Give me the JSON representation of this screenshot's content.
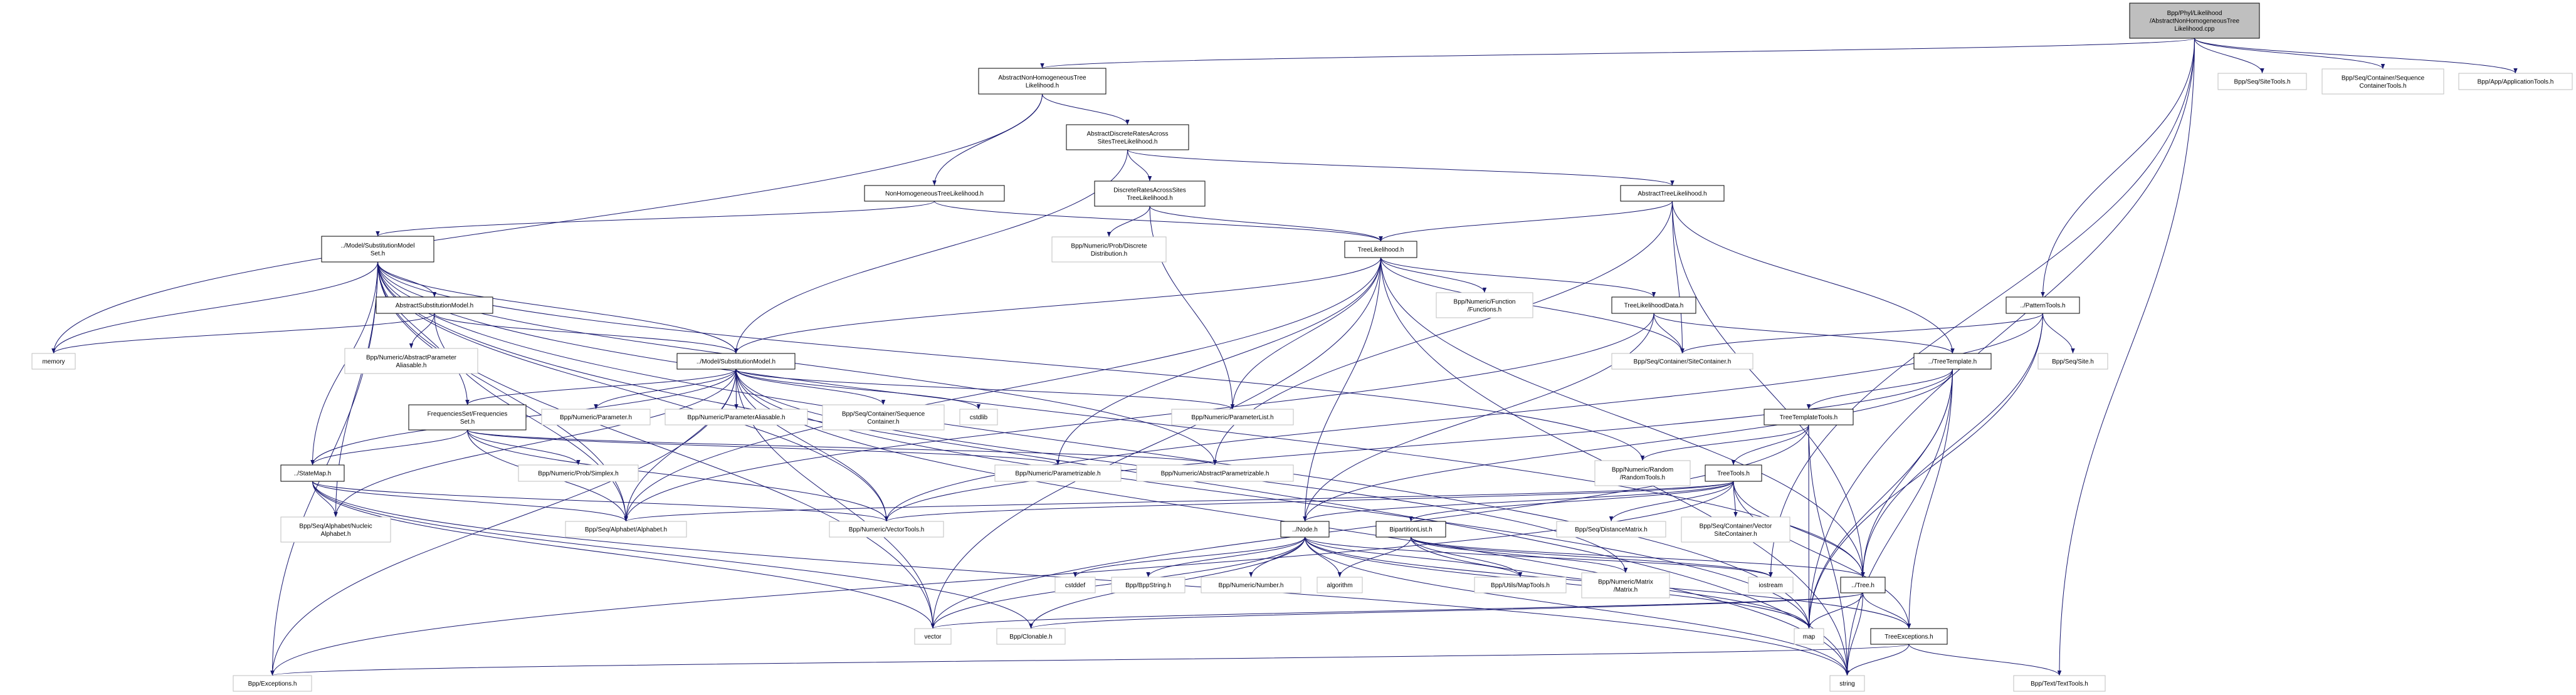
{
  "nodes": {
    "root": [
      "Bpp/Phyl/Likelihood",
      "/AbstractNonHomogeneousTree",
      "Likelihood.cpp"
    ],
    "anhtl": [
      "AbstractNonHomogeneousTree",
      "Likelihood.h"
    ],
    "sitetools": [
      "Bpp/Seq/SiteTools.h"
    ],
    "seqconttools": [
      "Bpp/Seq/Container/Sequence",
      "ContainerTools.h"
    ],
    "apptools": [
      "Bpp/App/ApplicationTools.h"
    ],
    "adras": [
      "AbstractDiscreteRatesAcross",
      "SitesTreeLikelihood.h"
    ],
    "nonhomtl": [
      "NonHomogeneousTreeLikelihood.h"
    ],
    "drastl": [
      "DiscreteRatesAcrossSites",
      "TreeLikelihood.h"
    ],
    "atl": [
      "AbstractTreeLikelihood.h"
    ],
    "discdist": [
      "Bpp/Numeric/Prob/Discrete",
      "Distribution.h"
    ],
    "treelik": [
      "TreeLikelihood.h"
    ],
    "functions": [
      "Bpp/Numeric/Function",
      "/Functions.h"
    ],
    "tldata": [
      "TreeLikelihoodData.h"
    ],
    "patterntools": [
      "../PatternTools.h"
    ],
    "smset": [
      "../Model/SubstitutionModel",
      "Set.h"
    ],
    "abssm": [
      "AbstractSubstitutionModel.h"
    ],
    "memory": [
      "memory"
    ],
    "absparalias": [
      "Bpp/Numeric/AbstractParameter",
      "Aliasable.h"
    ],
    "sm": [
      "../Model/SubstitutionModel.h"
    ],
    "freqset": [
      "FrequenciesSet/Frequencies",
      "Set.h"
    ],
    "parameter": [
      "Bpp/Numeric/Parameter.h"
    ],
    "paralias": [
      "Bpp/Numeric/ParameterAliasable.h"
    ],
    "seqcont": [
      "Bpp/Seq/Container/Sequence",
      "Container.h"
    ],
    "cstdlib": [
      "cstdlib"
    ],
    "paramlist": [
      "Bpp/Numeric/ParameterList.h"
    ],
    "sitecont": [
      "Bpp/Seq/Container/SiteContainer.h"
    ],
    "treetemplate": [
      "../TreeTemplate.h"
    ],
    "site": [
      "Bpp/Seq/Site.h"
    ],
    "ttt": [
      "TreeTemplateTools.h"
    ],
    "statemap": [
      "../StateMap.h"
    ],
    "simplex": [
      "Bpp/Numeric/Prob/Simplex.h"
    ],
    "parametrizable": [
      "Bpp/Numeric/Parametrizable.h"
    ],
    "absparametrizable": [
      "Bpp/Numeric/AbstractParametrizable.h"
    ],
    "randomtools": [
      "Bpp/Numeric/Random",
      "/RandomTools.h"
    ],
    "treetools": [
      "TreeTools.h"
    ],
    "nucalpha": [
      "Bpp/Seq/Alphabet/Nucleic",
      "Alphabet.h"
    ],
    "alphabet": [
      "Bpp/Seq/Alphabet/Alphabet.h"
    ],
    "vectortools": [
      "Bpp/Numeric/VectorTools.h"
    ],
    "node": [
      "../Node.h"
    ],
    "bipartition": [
      "BipartitionList.h"
    ],
    "distmatrix": [
      "Bpp/Seq/DistanceMatrix.h"
    ],
    "vecsitecont": [
      "Bpp/Seq/Container/Vector",
      "SiteContainer.h"
    ],
    "cstddef": [
      "cstddef"
    ],
    "bppstring": [
      "Bpp/BppString.h"
    ],
    "number": [
      "Bpp/Numeric/Number.h"
    ],
    "algorithm": [
      "algorithm"
    ],
    "maptools": [
      "Bpp/Utils/MapTools.h"
    ],
    "matrix": [
      "Bpp/Numeric/Matrix",
      "/Matrix.h"
    ],
    "iostream": [
      "iostream"
    ],
    "tree": [
      "../Tree.h"
    ],
    "vector": [
      "vector"
    ],
    "clonable": [
      "Bpp/Clonable.h"
    ],
    "map": [
      "map"
    ],
    "treeexc": [
      "TreeExceptions.h"
    ],
    "exceptions": [
      "Bpp/Exceptions.h"
    ],
    "string": [
      "string"
    ],
    "texttools": [
      "Bpp/Text/TextTools.h"
    ]
  },
  "edges": [
    [
      "root",
      "anhtl"
    ],
    [
      "root",
      "patterntools"
    ],
    [
      "root",
      "sitetools"
    ],
    [
      "root",
      "seqconttools"
    ],
    [
      "root",
      "apptools"
    ],
    [
      "root",
      "texttools"
    ],
    [
      "root",
      "map"
    ],
    [
      "root",
      "iostream"
    ],
    [
      "anhtl",
      "memory"
    ],
    [
      "anhtl",
      "nonhomtl"
    ],
    [
      "anhtl",
      "adras"
    ],
    [
      "adras",
      "sm"
    ],
    [
      "adras",
      "drastl"
    ],
    [
      "adras",
      "atl"
    ],
    [
      "nonhomtl",
      "smset"
    ],
    [
      "nonhomtl",
      "treelik"
    ],
    [
      "drastl",
      "discdist"
    ],
    [
      "drastl",
      "treelik"
    ],
    [
      "drastl",
      "paramlist"
    ],
    [
      "atl",
      "treelik"
    ],
    [
      "atl",
      "sitecont"
    ],
    [
      "atl",
      "treetemplate"
    ],
    [
      "atl",
      "tree"
    ],
    [
      "atl",
      "absparametrizable"
    ],
    [
      "treelik",
      "sm"
    ],
    [
      "treelik",
      "functions"
    ],
    [
      "treelik",
      "tldata"
    ],
    [
      "treelik",
      "sitecont"
    ],
    [
      "treelik",
      "node"
    ],
    [
      "treelik",
      "paramlist"
    ],
    [
      "treelik",
      "parametrizable"
    ],
    [
      "treelik",
      "vector"
    ],
    [
      "treelik",
      "tree"
    ],
    [
      "treelik",
      "alphabet"
    ],
    [
      "treelik",
      "string"
    ],
    [
      "tldata",
      "sitecont"
    ],
    [
      "tldata",
      "treetemplate"
    ],
    [
      "tldata",
      "node"
    ],
    [
      "tldata",
      "alphabet"
    ],
    [
      "smset",
      "memory"
    ],
    [
      "smset",
      "abssm"
    ],
    [
      "smset",
      "sm"
    ],
    [
      "smset",
      "freqset"
    ],
    [
      "smset",
      "statemap"
    ],
    [
      "smset",
      "nucalpha"
    ],
    [
      "smset",
      "alphabet"
    ],
    [
      "smset",
      "vectortools"
    ],
    [
      "smset",
      "exceptions"
    ],
    [
      "smset",
      "vector"
    ],
    [
      "smset",
      "tree"
    ],
    [
      "smset",
      "map"
    ],
    [
      "smset",
      "string"
    ],
    [
      "smset",
      "randomtools"
    ],
    [
      "smset",
      "absparametrizable"
    ],
    [
      "abssm",
      "memory"
    ],
    [
      "abssm",
      "absparalias"
    ],
    [
      "abssm",
      "sm"
    ],
    [
      "abssm",
      "alphabet"
    ],
    [
      "sm",
      "freqset"
    ],
    [
      "sm",
      "parameter"
    ],
    [
      "sm",
      "paralias"
    ],
    [
      "sm",
      "seqcont"
    ],
    [
      "sm",
      "cstdlib"
    ],
    [
      "sm",
      "paramlist"
    ],
    [
      "sm",
      "statemap"
    ],
    [
      "sm",
      "alphabet"
    ],
    [
      "sm",
      "vectortools"
    ],
    [
      "sm",
      "exceptions"
    ],
    [
      "sm",
      "matrix"
    ],
    [
      "sm",
      "map"
    ],
    [
      "sm",
      "string"
    ],
    [
      "sm",
      "vector"
    ],
    [
      "sm",
      "nucalpha"
    ],
    [
      "freqset",
      "statemap"
    ],
    [
      "freqset",
      "simplex"
    ],
    [
      "freqset",
      "alphabet"
    ],
    [
      "freqset",
      "vectortools"
    ],
    [
      "freqset",
      "parametrizable"
    ],
    [
      "freqset",
      "absparametrizable"
    ],
    [
      "statemap",
      "nucalpha"
    ],
    [
      "statemap",
      "alphabet"
    ],
    [
      "statemap",
      "vectortools"
    ],
    [
      "statemap",
      "vector"
    ],
    [
      "statemap",
      "string"
    ],
    [
      "statemap",
      "clonable"
    ],
    [
      "patterntools",
      "sitecont"
    ],
    [
      "patterntools",
      "site"
    ],
    [
      "patterntools",
      "tree"
    ],
    [
      "patterntools",
      "map"
    ],
    [
      "patterntools",
      "vectortools"
    ],
    [
      "treetemplate",
      "ttt"
    ],
    [
      "treetemplate",
      "tree"
    ],
    [
      "treetemplate",
      "treeexc"
    ],
    [
      "treetemplate",
      "string"
    ],
    [
      "treetemplate",
      "map"
    ],
    [
      "treetemplate",
      "node"
    ],
    [
      "treetemplate",
      "vectortools"
    ],
    [
      "ttt",
      "treetools"
    ],
    [
      "ttt",
      "randomtools"
    ],
    [
      "ttt",
      "map"
    ],
    [
      "ttt",
      "string"
    ],
    [
      "ttt",
      "vector"
    ],
    [
      "treetools",
      "vectortools"
    ],
    [
      "treetools",
      "node"
    ],
    [
      "treetools",
      "bipartition"
    ],
    [
      "treetools",
      "distmatrix"
    ],
    [
      "treetools",
      "vecsitecont"
    ],
    [
      "treetools",
      "tree"
    ],
    [
      "treetools",
      "exceptions"
    ],
    [
      "treetools",
      "treeexc"
    ],
    [
      "treetools",
      "alphabet"
    ],
    [
      "node",
      "cstddef"
    ],
    [
      "node",
      "bppstring"
    ],
    [
      "node",
      "number"
    ],
    [
      "node",
      "algorithm"
    ],
    [
      "node",
      "maptools"
    ],
    [
      "node",
      "clonable"
    ],
    [
      "node",
      "vector"
    ],
    [
      "node",
      "treeexc"
    ],
    [
      "node",
      "map"
    ],
    [
      "node",
      "string"
    ],
    [
      "node",
      "iostream"
    ],
    [
      "bipartition",
      "algorithm"
    ],
    [
      "bipartition",
      "maptools"
    ],
    [
      "bipartition",
      "matrix"
    ],
    [
      "bipartition",
      "tree"
    ],
    [
      "bipartition",
      "map"
    ],
    [
      "bipartition",
      "iostream"
    ],
    [
      "tree",
      "map"
    ],
    [
      "tree",
      "string"
    ],
    [
      "tree",
      "treeexc"
    ],
    [
      "tree",
      "vector"
    ],
    [
      "tree",
      "clonable"
    ],
    [
      "treeexc",
      "string"
    ],
    [
      "treeexc",
      "texttools"
    ],
    [
      "treeexc",
      "exceptions"
    ]
  ],
  "colors": {
    "edge": "#191970",
    "root_fill": "#bfbfbf",
    "external_border": "#bfbfbf",
    "documented_border": "#000000"
  }
}
